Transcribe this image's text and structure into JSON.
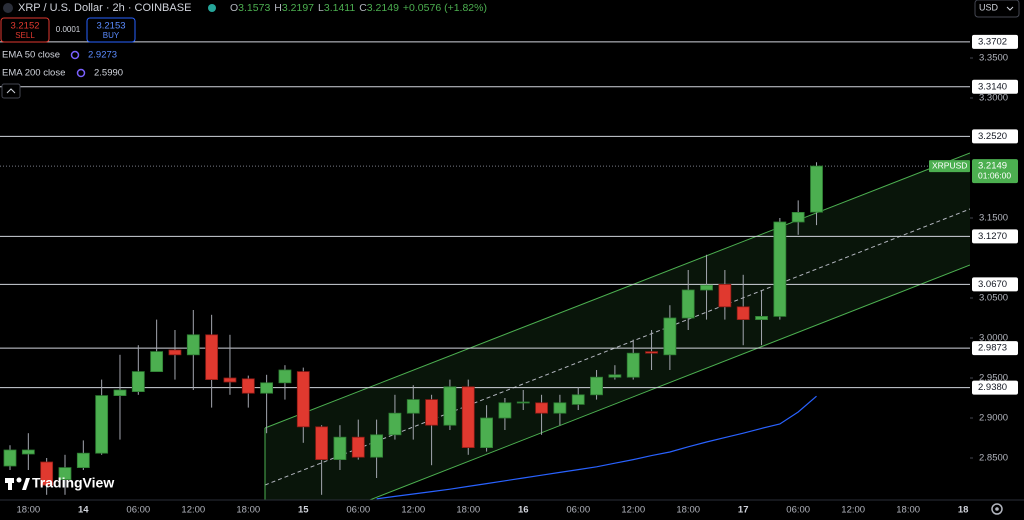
{
  "header": {
    "title": "XRP / U.S. Dollar · 2h · COINBASE",
    "ohlc": [
      {
        "label": "O",
        "value": "3.1573"
      },
      {
        "label": "H",
        "value": "3.2197"
      },
      {
        "label": "L",
        "value": "3.1411"
      },
      {
        "label": "C",
        "value": "3.2149"
      }
    ],
    "change": "+0.0576 (+1.82%)",
    "sell": {
      "price": "3.2152",
      "label": "SELL"
    },
    "spread": "0.0001",
    "buy": {
      "price": "3.2153",
      "label": "BUY"
    },
    "indicators": [
      {
        "name": "EMA 50 close",
        "value": "2.9273"
      },
      {
        "name": "EMA 200 close",
        "value": "2.5990"
      }
    ],
    "currency": "USD",
    "brand": "TradingView"
  },
  "chart_data": {
    "type": "candlestick",
    "categories": [
      null,
      "18:00",
      null,
      null,
      "14",
      null,
      null,
      "06:00",
      null,
      null,
      "12:00",
      null,
      null,
      "18:00",
      null,
      null,
      "15",
      null,
      null,
      "06:00",
      null,
      null,
      "12:00",
      null,
      null,
      "18:00",
      null,
      null,
      "16",
      null,
      null,
      "06:00",
      null,
      null,
      "12:00",
      null,
      null,
      "18:00",
      null,
      null,
      "17",
      null,
      null,
      "06:00",
      null,
      null,
      "12:00",
      null,
      null,
      "18:00",
      null,
      null,
      "18"
    ],
    "open": [
      2.84,
      2.855,
      2.845,
      2.823,
      2.838,
      2.856,
      2.928,
      2.933,
      2.958,
      2.985,
      2.979,
      3.004,
      2.95,
      2.949,
      2.931,
      2.944,
      2.958,
      2.889,
      2.848,
      2.876,
      2.851,
      2.879,
      2.906,
      2.923,
      2.891,
      2.939,
      2.863,
      2.9,
      2.919,
      2.919,
      2.906,
      2.917,
      2.929,
      2.951,
      2.951,
      2.983,
      2.979,
      3.025,
      3.06,
      3.067,
      3.039,
      3.023,
      3.027,
      3.145,
      3.1573,
      null,
      null,
      null,
      null,
      null,
      null,
      null,
      null
    ],
    "high": [
      2.866,
      2.881,
      2.85,
      2.854,
      2.872,
      2.948,
      2.979,
      2.991,
      3.023,
      3.01,
      3.035,
      3.029,
      3.004,
      2.953,
      2.954,
      2.966,
      2.963,
      2.891,
      2.891,
      2.898,
      2.898,
      2.929,
      2.941,
      2.929,
      2.948,
      2.948,
      2.916,
      2.925,
      2.935,
      2.929,
      2.929,
      2.938,
      2.96,
      2.966,
      2.998,
      3.01,
      3.041,
      3.085,
      3.104,
      3.085,
      3.079,
      3.06,
      3.15,
      3.172,
      3.2197,
      null,
      null,
      null,
      null,
      null,
      null,
      null,
      null
    ],
    "low": [
      2.835,
      2.835,
      2.804,
      2.804,
      2.835,
      2.854,
      2.873,
      2.929,
      2.958,
      2.948,
      2.935,
      2.913,
      2.929,
      2.913,
      2.881,
      2.923,
      2.869,
      2.804,
      2.835,
      2.848,
      2.825,
      2.873,
      2.873,
      2.841,
      2.885,
      2.854,
      2.858,
      2.885,
      2.91,
      2.879,
      2.891,
      2.91,
      2.923,
      2.948,
      2.948,
      2.96,
      2.96,
      3.01,
      3.023,
      3.023,
      2.991,
      2.991,
      3.023,
      3.129,
      3.1411,
      null,
      null,
      null,
      null,
      null,
      null,
      null,
      null
    ],
    "close": [
      2.86,
      2.86,
      2.816,
      2.838,
      2.856,
      2.928,
      2.935,
      2.958,
      2.983,
      2.979,
      3.004,
      2.948,
      2.945,
      2.931,
      2.944,
      2.96,
      2.889,
      2.848,
      2.876,
      2.851,
      2.879,
      2.906,
      2.923,
      2.891,
      2.939,
      2.863,
      2.9,
      2.919,
      2.92,
      2.906,
      2.919,
      2.929,
      2.951,
      2.954,
      2.981,
      2.981,
      3.025,
      3.06,
      3.066,
      3.039,
      3.023,
      3.027,
      3.145,
      3.157,
      3.2149,
      null,
      null,
      null,
      null,
      null,
      null,
      null,
      null
    ],
    "series": [
      {
        "color": "#2962ff",
        "values": [
          null,
          null,
          null,
          null,
          null,
          null,
          null,
          null,
          null,
          null,
          null,
          null,
          null,
          null,
          null,
          null,
          null,
          null,
          null,
          null,
          2.799,
          2.802,
          2.805,
          2.808,
          2.811,
          2.8145,
          2.818,
          2.8215,
          2.825,
          2.8285,
          2.832,
          2.8355,
          2.839,
          2.8435,
          2.848,
          2.853,
          2.8575,
          2.864,
          2.87,
          2.8755,
          2.881,
          2.887,
          2.8925,
          2.9075,
          2.9273,
          null,
          null,
          null,
          null,
          null,
          null,
          null,
          null
        ]
      }
    ],
    "up_color": "#4caf50",
    "down_color": "#e0392f",
    "wick_color": "#a3a6af",
    "ylim": [
      2.7975,
      3.4225
    ],
    "yticks": [
      {
        "value": 2.85,
        "label": "2.8500"
      },
      {
        "value": 2.9,
        "label": "2.9000"
      },
      {
        "value": 2.95,
        "label": "2.9500"
      },
      {
        "value": 3.0,
        "label": "3.0000"
      },
      {
        "value": 3.05,
        "label": "3.0500"
      },
      {
        "value": 3.15,
        "label": "3.1500"
      },
      {
        "value": 3.3,
        "label": "3.3000"
      },
      {
        "value": 3.35,
        "label": "3.3500"
      }
    ],
    "grid": false,
    "levels": [
      {
        "value": 3.3702,
        "label": "3.3702"
      },
      {
        "value": 3.314,
        "label": "3.3140"
      },
      {
        "value": 3.252,
        "label": "3.2520"
      },
      {
        "value": 3.127,
        "label": "3.1270"
      },
      {
        "value": 3.067,
        "label": "3.0670"
      },
      {
        "value": 2.9873,
        "label": "2.9873"
      },
      {
        "value": 2.938,
        "label": "2.9380"
      }
    ],
    "last_price": {
      "name": "XRPUSD",
      "value": 3.2149,
      "countdown": "01:06:00",
      "color": "#4caf50"
    }
  }
}
